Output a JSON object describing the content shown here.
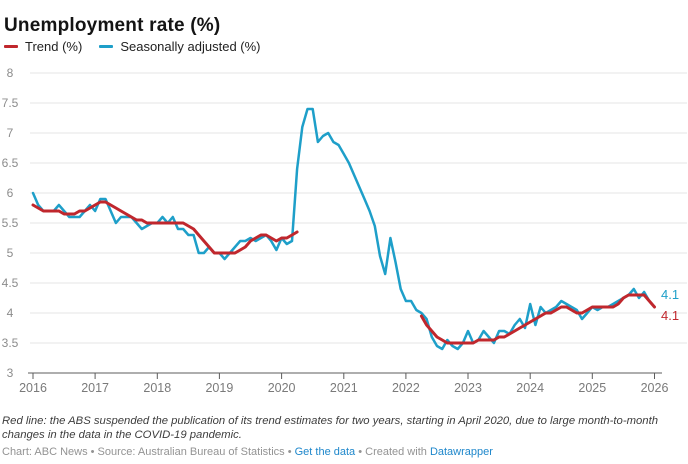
{
  "header": {
    "title": "Unemployment rate (%)"
  },
  "legend": [
    {
      "label": "Trend (%)",
      "color": "#c0272d"
    },
    {
      "label": "Seasonally adjusted (%)",
      "color": "#1e9fc9"
    }
  ],
  "chart_data": {
    "type": "line",
    "title": "Unemployment rate (%)",
    "x_unit": "monthly, Jan 2016 - Jan 2026",
    "x_ticks": [
      2016,
      2017,
      2018,
      2019,
      2020,
      2021,
      2022,
      2023,
      2024,
      2025,
      2026
    ],
    "y_ticks": [
      3,
      3.5,
      4,
      4.5,
      5,
      5.5,
      6,
      6.5,
      7,
      7.5,
      8
    ],
    "ylim": [
      3,
      8
    ],
    "grid": "horizontal",
    "legend_position": "top-left",
    "series": [
      {
        "name": "Trend (%)",
        "color": "#c0272d",
        "width": 3,
        "end_label": "4.1",
        "gap_note": "suspended April 2020 to April 2022",
        "segments": [
          {
            "start": "2016-01",
            "values": [
              5.8,
              5.75,
              5.7,
              5.7,
              5.7,
              5.7,
              5.65,
              5.65,
              5.65,
              5.7,
              5.7,
              5.75,
              5.8,
              5.85,
              5.85,
              5.8,
              5.75,
              5.7,
              5.65,
              5.6,
              5.55,
              5.55,
              5.5,
              5.5,
              5.5,
              5.5,
              5.5,
              5.5,
              5.5,
              5.5,
              5.45,
              5.4,
              5.3,
              5.2,
              5.1,
              5.0,
              5.0,
              5.0,
              5.0,
              5.0,
              5.05,
              5.1,
              5.2,
              5.25,
              5.3,
              5.3,
              5.25,
              5.2,
              5.25,
              5.25,
              5.3,
              5.35
            ]
          },
          {
            "start": "2022-04",
            "values": [
              3.95,
              3.8,
              3.7,
              3.6,
              3.55,
              3.5,
              3.5,
              3.5,
              3.5,
              3.5,
              3.5,
              3.55,
              3.55,
              3.55,
              3.55,
              3.6,
              3.6,
              3.65,
              3.7,
              3.75,
              3.8,
              3.85,
              3.9,
              3.95,
              4.0,
              4.0,
              4.05,
              4.1,
              4.1,
              4.05,
              4.0,
              4.0,
              4.05,
              4.1,
              4.1,
              4.1,
              4.1,
              4.1,
              4.15,
              4.25,
              4.3,
              4.3,
              4.3,
              4.3,
              4.2,
              4.1
            ]
          }
        ]
      },
      {
        "name": "Seasonally adjusted (%)",
        "color": "#1e9fc9",
        "width": 2.5,
        "end_label": "4.1",
        "segments": [
          {
            "start": "2016-01",
            "values": [
              6.0,
              5.8,
              5.7,
              5.7,
              5.7,
              5.8,
              5.7,
              5.6,
              5.6,
              5.6,
              5.7,
              5.8,
              5.7,
              5.9,
              5.9,
              5.7,
              5.5,
              5.6,
              5.6,
              5.6,
              5.5,
              5.4,
              5.45,
              5.5,
              5.5,
              5.6,
              5.5,
              5.6,
              5.4,
              5.4,
              5.3,
              5.3,
              5.0,
              5.0,
              5.1,
              5.0,
              5.0,
              4.9,
              5.0,
              5.1,
              5.2,
              5.2,
              5.25,
              5.2,
              5.25,
              5.3,
              5.2,
              5.05,
              5.25,
              5.15,
              5.2,
              6.4,
              7.1,
              7.4,
              7.4,
              6.85,
              6.95,
              7.0,
              6.85,
              6.8,
              6.65,
              6.5,
              6.3,
              6.1,
              5.9,
              5.7,
              5.45,
              4.95,
              4.65,
              5.25,
              4.85,
              4.4,
              4.2,
              4.2,
              4.05,
              4.0,
              3.9,
              3.6,
              3.45,
              3.4,
              3.55,
              3.45,
              3.4,
              3.5,
              3.7,
              3.5,
              3.55,
              3.7,
              3.6,
              3.5,
              3.7,
              3.7,
              3.65,
              3.8,
              3.9,
              3.75,
              4.15,
              3.8,
              4.1,
              4.0,
              4.05,
              4.1,
              4.2,
              4.15,
              4.1,
              4.05,
              3.9,
              4.0,
              4.1,
              4.05,
              4.1,
              4.1,
              4.15,
              4.2,
              4.25,
              4.3,
              4.4,
              4.25,
              4.35,
              4.2,
              4.1
            ]
          }
        ]
      }
    ]
  },
  "footnote": "Red line: the ABS suspended the publication of its trend estimates for two years, starting in April 2020, due to large month-to-month changes in the data in the COVID-19 pandemic.",
  "credit": {
    "link_color": "#1e87cb",
    "parts": [
      {
        "text": "Chart: ABC News • Source: Australian Bureau of Statistics • "
      },
      {
        "text": "Get the data",
        "link": true
      },
      {
        "text": " • Created with "
      },
      {
        "text": "Datawrapper",
        "link": true
      }
    ]
  }
}
